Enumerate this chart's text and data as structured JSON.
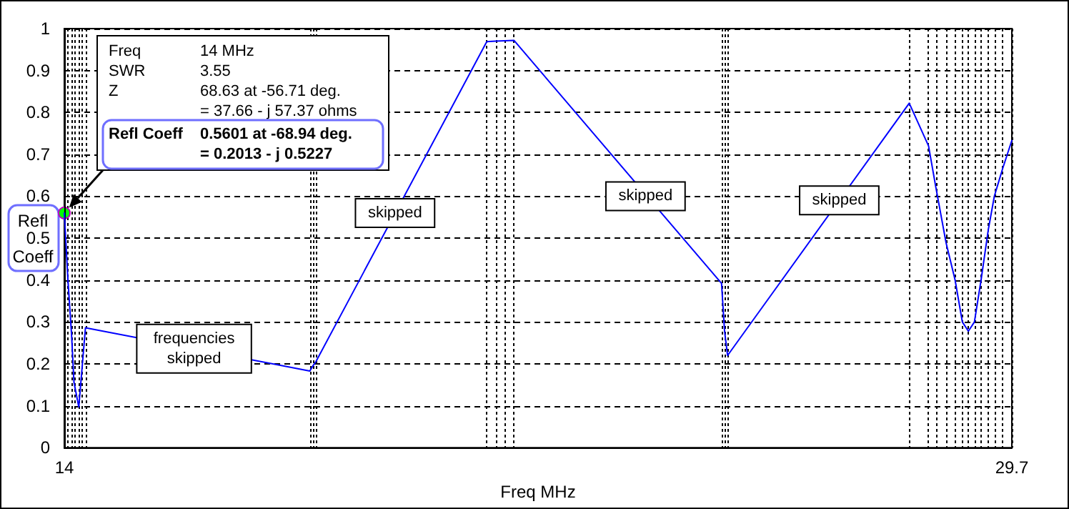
{
  "chart_data": {
    "type": "line",
    "xlabel": "Freq MHz",
    "ylabel": "Refl Coeff",
    "x": [
      14.0,
      14.06,
      14.12,
      14.16,
      14.24,
      14.3,
      14.35,
      18.068,
      18.118,
      18.168,
      21.0,
      21.15,
      21.3,
      21.45,
      24.89,
      24.94,
      24.99,
      28.0,
      28.32,
      28.44,
      28.61,
      28.76,
      28.88,
      28.98,
      29.08,
      29.19,
      29.31,
      29.41,
      29.55,
      29.7
    ],
    "series": [
      {
        "color": "#0000ff",
        "values": [
          0.56,
          0.4,
          0.27,
          0.156,
          0.097,
          0.2,
          0.286,
          0.183,
          0.195,
          0.205,
          0.969,
          0.97,
          0.971,
          0.972,
          0.392,
          0.278,
          0.22,
          0.822,
          0.72,
          0.622,
          0.489,
          0.4,
          0.3,
          0.278,
          0.3,
          0.4,
          0.52,
          0.6,
          0.667,
          0.733
        ]
      }
    ],
    "xlim": [
      14,
      29.7
    ],
    "xticks": [
      14,
      29.7
    ],
    "ylim": [
      0,
      1
    ],
    "yticks": [
      0,
      0.1,
      0.2,
      0.3,
      0.4,
      0.5,
      0.6,
      0.7,
      0.8,
      0.9,
      1
    ],
    "grid": true,
    "line_style": "solid",
    "marker": "none",
    "annotations": [
      "Freq\t14 MHz",
      "SWR\t3.55",
      "Z\t68.63 at -56.71 deg.",
      "\t= 37.66 - j 57.37 ohms",
      "Refl Coeff\t0.5601 at -68.94 deg.\n\t= 0.2013 - j 0.5227",
      {
        "text": "frequencies\nskipped",
        "x": 16.15,
        "y": 0.236
      },
      {
        "text": "skipped",
        "x": 19.48,
        "y": 0.56
      },
      {
        "text": "skipped",
        "x": 23.63,
        "y": 0.6
      },
      {
        "text": "skipped",
        "x": 26.84,
        "y": 0.59
      }
    ]
  }
}
